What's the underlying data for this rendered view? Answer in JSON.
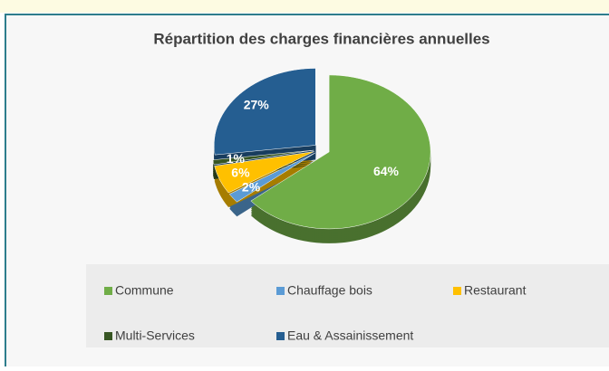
{
  "chart_data": {
    "type": "pie",
    "title": "Répartition des charges financières annuelles",
    "categories": [
      "Commune",
      "Chauffage bois",
      "Restaurant",
      "Multi-Services",
      "Eau & Assainissement"
    ],
    "values": [
      64,
      2,
      6,
      1,
      27
    ],
    "value_labels": [
      "64%",
      "2%",
      "6%",
      "1%",
      "27%"
    ],
    "colors": [
      "#70ad47",
      "#5b9bd5",
      "#ffc000",
      "#375623",
      "#255e91"
    ]
  }
}
